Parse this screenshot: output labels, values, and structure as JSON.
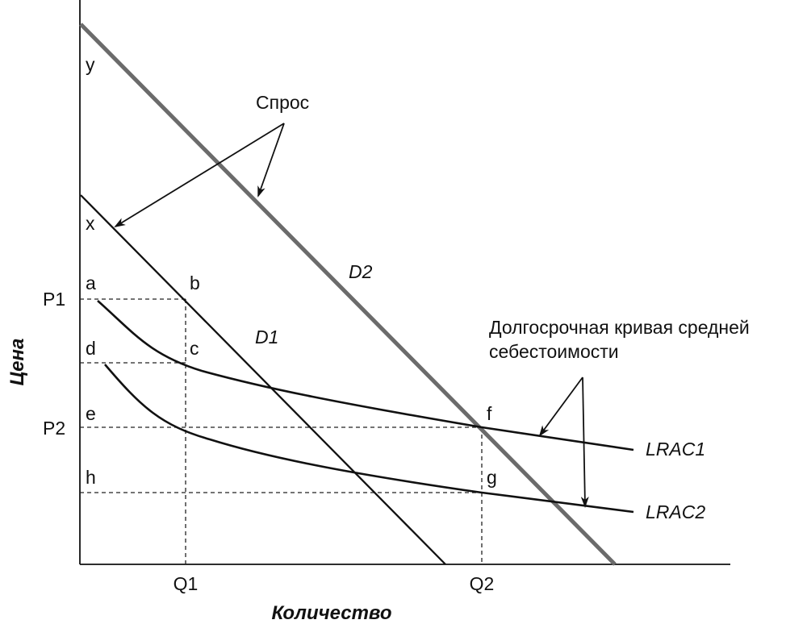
{
  "chart_data": {
    "type": "line",
    "xlabel": "Количество",
    "ylabel": "Цена",
    "x_ticks": [
      "Q1",
      "Q2"
    ],
    "y_ticks": [
      "P1",
      "P2"
    ],
    "series": [
      {
        "name": "D1"
      },
      {
        "name": "D2"
      },
      {
        "name": "LRAC1"
      },
      {
        "name": "LRAC2"
      }
    ],
    "point_labels": [
      "y",
      "x",
      "a",
      "b",
      "c",
      "d",
      "e",
      "f",
      "g",
      "h"
    ],
    "annotations": {
      "demand": "Спрос",
      "lrac_line1": "Долгосрочная кривая средней",
      "lrac_line2": "себестоимости"
    },
    "colors": {
      "line": "#111111",
      "d2_line": "#6b6b6b"
    }
  }
}
